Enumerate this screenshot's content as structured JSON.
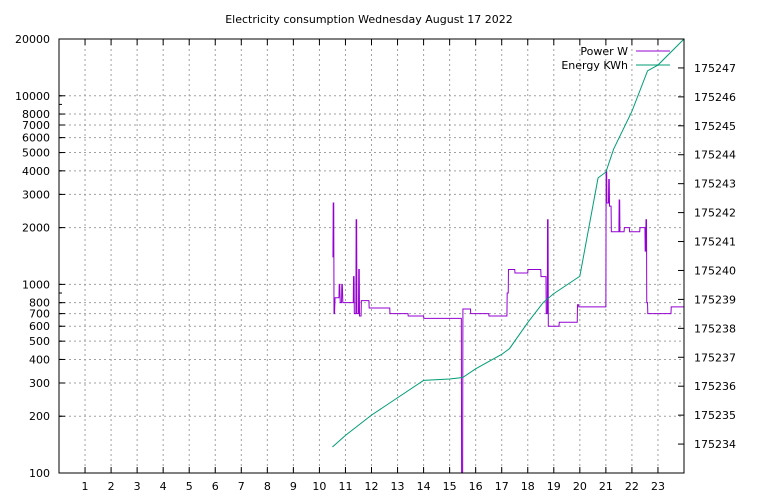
{
  "chart_data": {
    "type": "line",
    "title": "Electricity consumption Wednesday August 17 2022",
    "x_ticks": [
      1,
      2,
      3,
      4,
      5,
      6,
      7,
      8,
      9,
      10,
      11,
      12,
      13,
      14,
      15,
      16,
      17,
      18,
      19,
      20,
      21,
      22,
      23
    ],
    "xlim": [
      0,
      24
    ],
    "y_left": {
      "scale": "log",
      "ylim": [
        100,
        20000
      ],
      "ticks": [
        100,
        200,
        300,
        400,
        500,
        600,
        700,
        800,
        1000,
        2000,
        3000,
        4000,
        5000,
        6000,
        7000,
        8000,
        10000,
        20000
      ]
    },
    "y_right": {
      "ylim": [
        175233,
        175248
      ],
      "ticks": [
        175234,
        175235,
        175236,
        175237,
        175238,
        175239,
        175240,
        175241,
        175242,
        175243,
        175244,
        175245,
        175246,
        175247
      ]
    },
    "grid": true,
    "legend_position": "top-right",
    "series": [
      {
        "name": "Power W",
        "axis": "left",
        "color": "#9400d3",
        "points": [
          [
            10.5,
            1400
          ],
          [
            10.52,
            1400
          ],
          [
            10.53,
            2700
          ],
          [
            10.55,
            2700
          ],
          [
            10.56,
            700
          ],
          [
            10.58,
            700
          ],
          [
            10.6,
            850
          ],
          [
            10.75,
            850
          ],
          [
            10.76,
            1000
          ],
          [
            10.78,
            1000
          ],
          [
            10.8,
            800
          ],
          [
            10.85,
            800
          ],
          [
            10.86,
            1000
          ],
          [
            10.88,
            1000
          ],
          [
            10.9,
            800
          ],
          [
            11.3,
            800
          ],
          [
            11.31,
            1100
          ],
          [
            11.33,
            1100
          ],
          [
            11.34,
            700
          ],
          [
            11.4,
            700
          ],
          [
            11.41,
            2200
          ],
          [
            11.43,
            2200
          ],
          [
            11.44,
            700
          ],
          [
            11.5,
            700
          ],
          [
            11.51,
            1200
          ],
          [
            11.53,
            1200
          ],
          [
            11.54,
            680
          ],
          [
            11.6,
            680
          ],
          [
            11.61,
            820
          ],
          [
            11.9,
            820
          ],
          [
            11.91,
            750
          ],
          [
            12.7,
            750
          ],
          [
            12.71,
            700
          ],
          [
            13.4,
            700
          ],
          [
            13.41,
            680
          ],
          [
            14.0,
            680
          ],
          [
            14.01,
            660
          ],
          [
            15.45,
            660
          ],
          [
            15.46,
            100
          ],
          [
            15.5,
            100
          ],
          [
            15.51,
            740
          ],
          [
            15.8,
            740
          ],
          [
            15.81,
            700
          ],
          [
            16.5,
            700
          ],
          [
            16.51,
            680
          ],
          [
            17.2,
            680
          ],
          [
            17.21,
            900
          ],
          [
            17.25,
            900
          ],
          [
            17.26,
            1200
          ],
          [
            17.5,
            1200
          ],
          [
            17.51,
            1150
          ],
          [
            18.0,
            1150
          ],
          [
            18.01,
            1200
          ],
          [
            18.5,
            1200
          ],
          [
            18.51,
            1100
          ],
          [
            18.7,
            1100
          ],
          [
            18.71,
            700
          ],
          [
            18.75,
            700
          ],
          [
            18.76,
            2200
          ],
          [
            18.78,
            2200
          ],
          [
            18.79,
            600
          ],
          [
            19.2,
            600
          ],
          [
            19.21,
            630
          ],
          [
            19.9,
            630
          ],
          [
            19.91,
            780
          ],
          [
            19.95,
            780
          ],
          [
            19.96,
            760
          ],
          [
            21.0,
            760
          ],
          [
            21.01,
            4000
          ],
          [
            21.03,
            4000
          ],
          [
            21.04,
            2700
          ],
          [
            21.1,
            2700
          ],
          [
            21.11,
            3600
          ],
          [
            21.13,
            3600
          ],
          [
            21.14,
            2600
          ],
          [
            21.2,
            2600
          ],
          [
            21.21,
            1900
          ],
          [
            21.5,
            1900
          ],
          [
            21.51,
            2800
          ],
          [
            21.53,
            2800
          ],
          [
            21.54,
            1900
          ],
          [
            21.7,
            1900
          ],
          [
            21.71,
            2000
          ],
          [
            21.9,
            2000
          ],
          [
            21.91,
            1900
          ],
          [
            22.3,
            1900
          ],
          [
            22.31,
            2000
          ],
          [
            22.5,
            2000
          ],
          [
            22.51,
            1500
          ],
          [
            22.53,
            1500
          ],
          [
            22.54,
            2200
          ],
          [
            22.56,
            2200
          ],
          [
            22.57,
            800
          ],
          [
            22.6,
            800
          ],
          [
            22.61,
            700
          ],
          [
            23.5,
            700
          ],
          [
            23.51,
            760
          ],
          [
            24.0,
            760
          ]
        ]
      },
      {
        "name": "Energy KWh",
        "axis": "right",
        "color": "#009e73",
        "points": [
          [
            10.5,
            175233.9
          ],
          [
            11.0,
            175234.3
          ],
          [
            12.0,
            175235.0
          ],
          [
            13.0,
            175235.6
          ],
          [
            14.0,
            175236.2
          ],
          [
            15.0,
            175236.25
          ],
          [
            15.5,
            175236.3
          ],
          [
            16.0,
            175236.6
          ],
          [
            17.0,
            175237.1
          ],
          [
            17.3,
            175237.3
          ],
          [
            18.0,
            175238.2
          ],
          [
            18.6,
            175238.9
          ],
          [
            19.0,
            175239.2
          ],
          [
            20.0,
            175239.8
          ],
          [
            20.7,
            175243.2
          ],
          [
            21.0,
            175243.4
          ],
          [
            21.3,
            175244.2
          ],
          [
            22.0,
            175245.5
          ],
          [
            22.6,
            175246.9
          ],
          [
            23.0,
            175247.1
          ],
          [
            24.0,
            175248.0
          ]
        ]
      }
    ]
  }
}
